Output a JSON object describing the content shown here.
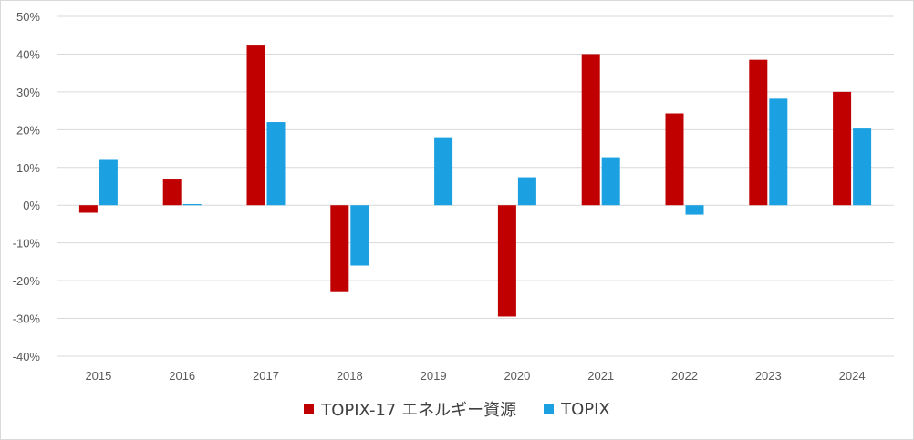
{
  "chart_data": {
    "type": "bar",
    "categories": [
      "2015",
      "2016",
      "2017",
      "2018",
      "2019",
      "2020",
      "2021",
      "2022",
      "2023",
      "2024"
    ],
    "series": [
      {
        "name": "TOPIX-17 エネルギー資源",
        "color": "#c00000",
        "values": [
          -2.0,
          6.8,
          42.5,
          -22.8,
          0.0,
          -29.5,
          40.0,
          24.3,
          38.5,
          30.0
        ]
      },
      {
        "name": "TOPIX",
        "color": "#1ba1e2",
        "values": [
          12.0,
          0.3,
          22.0,
          -16.0,
          18.0,
          7.4,
          12.7,
          -2.5,
          28.2,
          20.3
        ]
      }
    ],
    "ylim": [
      -40,
      50
    ],
    "yticks": [
      50,
      40,
      30,
      20,
      10,
      0,
      -10,
      -20,
      -30,
      -40
    ],
    "ytick_labels": [
      "50%",
      "40%",
      "30%",
      "20%",
      "10%",
      "0%",
      "-10%",
      "-20%",
      "-30%",
      "-40%"
    ],
    "grid": true,
    "legend_position": "bottom"
  }
}
